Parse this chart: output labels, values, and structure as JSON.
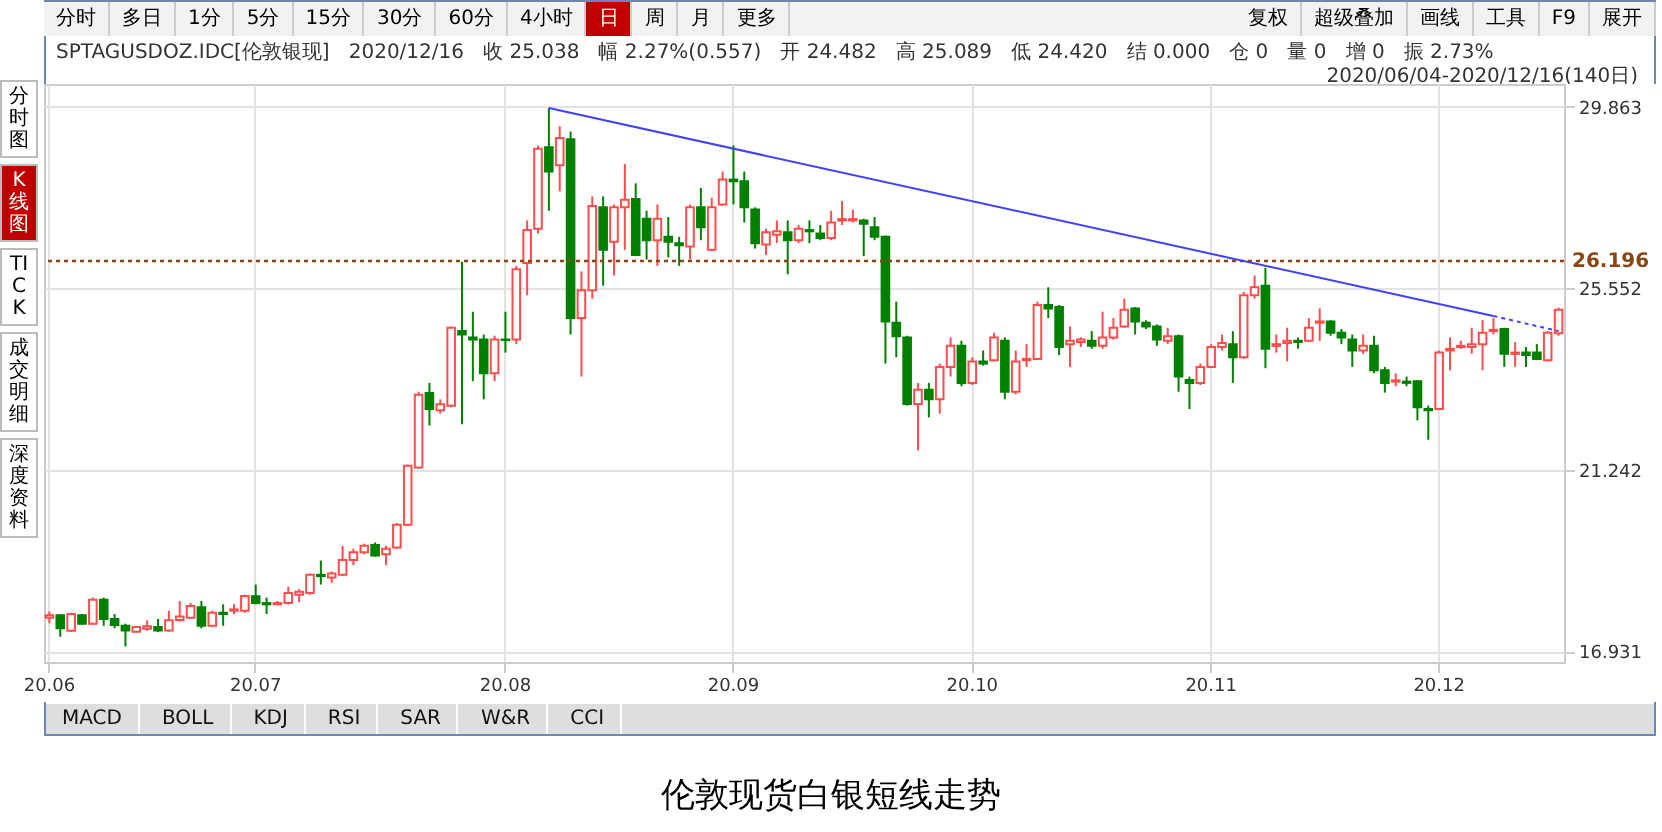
{
  "chart_data": {
    "type": "candlestick",
    "title": "伦敦现货白银短线走势",
    "subtitle": "SPTAGUSDOZ.IDC[伦敦银现]   2020/12/16   收 25.038   幅 2.27%(0.557)   开 24.482   高 25.089   低 24.420   结 0.000   仓 0   量 0   增 0   振 2.73%",
    "annotations": [
      "分时",
      "多日",
      "1分",
      "5分",
      "15分",
      "30分",
      "60分",
      "4小时",
      "日",
      "周",
      "月",
      "更多",
      "复权",
      "超级叠加",
      "画线",
      "工具",
      "F9",
      "展开",
      "分时图",
      "K线图",
      "TICK",
      "成交明细",
      "深度资料",
      "MACD",
      "BOLL",
      "KDJ",
      "RSI",
      "SAR",
      "W&R",
      "CCI",
      "2020/06/04-2020/12/16(140日)"
    ],
    "categories": [
      "20.06",
      null,
      null,
      null,
      null,
      null,
      null,
      null,
      null,
      null,
      null,
      null,
      null,
      null,
      null,
      null,
      null,
      null,
      null,
      "20.07",
      null,
      null,
      null,
      null,
      null,
      null,
      null,
      null,
      null,
      null,
      null,
      null,
      null,
      null,
      null,
      null,
      null,
      null,
      null,
      null,
      null,
      null,
      "20.08",
      null,
      null,
      null,
      null,
      null,
      null,
      null,
      null,
      null,
      null,
      null,
      null,
      null,
      null,
      null,
      null,
      null,
      null,
      null,
      null,
      "20.09",
      null,
      null,
      null,
      null,
      null,
      null,
      null,
      null,
      null,
      null,
      null,
      null,
      null,
      null,
      null,
      null,
      null,
      null,
      null,
      null,
      null,
      "20.10",
      null,
      null,
      null,
      null,
      null,
      null,
      null,
      null,
      null,
      null,
      null,
      null,
      null,
      null,
      null,
      null,
      null,
      null,
      null,
      null,
      null,
      "20.11",
      null,
      null,
      null,
      null,
      null,
      null,
      null,
      null,
      null,
      null,
      null,
      null,
      null,
      null,
      null,
      null,
      null,
      null,
      null,
      null,
      "20.12",
      null,
      null,
      null,
      null,
      null,
      null,
      null,
      null,
      null,
      null,
      null
    ],
    "ohlc": [
      [
        17.72,
        17.87,
        17.59,
        17.78
      ],
      [
        17.78,
        17.81,
        17.27,
        17.47
      ],
      [
        17.41,
        17.84,
        17.38,
        17.81
      ],
      [
        17.78,
        17.81,
        17.56,
        17.58
      ],
      [
        17.58,
        18.2,
        17.56,
        18.15
      ],
      [
        18.15,
        18.2,
        17.53,
        17.69
      ],
      [
        17.69,
        17.81,
        17.47,
        17.55
      ],
      [
        17.53,
        17.58,
        17.04,
        17.42
      ],
      [
        17.39,
        17.53,
        17.38,
        17.5
      ],
      [
        17.46,
        17.66,
        17.41,
        17.52
      ],
      [
        17.5,
        17.69,
        17.38,
        17.42
      ],
      [
        17.42,
        17.89,
        17.39,
        17.66
      ],
      [
        17.67,
        18.12,
        17.63,
        17.75
      ],
      [
        17.72,
        18.07,
        17.69,
        18.0
      ],
      [
        17.97,
        18.12,
        17.47,
        17.53
      ],
      [
        17.53,
        17.89,
        17.5,
        17.84
      ],
      [
        17.84,
        18.04,
        17.53,
        17.81
      ],
      [
        17.89,
        18.04,
        17.81,
        17.92
      ],
      [
        17.89,
        18.27,
        17.84,
        18.24
      ],
      [
        18.23,
        18.51,
        18.04,
        18.07
      ],
      [
        18.07,
        18.2,
        17.81,
        18.04
      ],
      [
        18.04,
        18.12,
        18.03,
        18.07
      ],
      [
        18.07,
        18.46,
        18.04,
        18.31
      ],
      [
        18.27,
        18.4,
        18.09,
        18.34
      ],
      [
        18.31,
        18.77,
        18.27,
        18.74
      ],
      [
        18.74,
        19.08,
        18.51,
        18.71
      ],
      [
        18.68,
        18.82,
        18.55,
        18.77
      ],
      [
        18.74,
        19.43,
        18.71,
        19.09
      ],
      [
        19.09,
        19.36,
        18.97,
        19.28
      ],
      [
        19.28,
        19.48,
        19.23,
        19.43
      ],
      [
        19.45,
        19.51,
        19.17,
        19.2
      ],
      [
        19.23,
        19.43,
        18.97,
        19.36
      ],
      [
        19.39,
        19.97,
        19.36,
        19.93
      ],
      [
        19.93,
        21.36,
        19.9,
        21.33
      ],
      [
        21.29,
        23.09,
        21.26,
        23.02
      ],
      [
        23.06,
        23.3,
        22.29,
        22.68
      ],
      [
        22.65,
        22.91,
        22.57,
        22.79
      ],
      [
        22.76,
        24.64,
        22.72,
        24.61
      ],
      [
        24.53,
        26.18,
        22.32,
        24.45
      ],
      [
        24.38,
        24.99,
        23.34,
        24.33
      ],
      [
        24.33,
        24.45,
        22.91,
        23.53
      ],
      [
        23.53,
        24.42,
        23.34,
        24.33
      ],
      [
        24.33,
        24.99,
        24.02,
        24.32
      ],
      [
        24.33,
        26.08,
        24.22,
        26.0
      ],
      [
        26.15,
        27.16,
        25.38,
        26.93
      ],
      [
        26.96,
        28.94,
        26.85,
        28.86
      ],
      [
        28.9,
        29.83,
        27.39,
        28.32
      ],
      [
        28.47,
        29.4,
        27.85,
        29.12
      ],
      [
        29.09,
        29.27,
        24.45,
        24.84
      ],
      [
        24.84,
        25.95,
        23.45,
        25.5
      ],
      [
        25.5,
        27.73,
        25.3,
        27.5
      ],
      [
        27.47,
        27.73,
        25.61,
        26.46
      ],
      [
        26.65,
        27.54,
        25.85,
        27.47
      ],
      [
        27.47,
        28.5,
        26.46,
        27.65
      ],
      [
        27.67,
        28.04,
        26.31,
        26.34
      ],
      [
        27.2,
        27.39,
        26.23,
        26.69
      ],
      [
        26.69,
        27.54,
        26.08,
        27.2
      ],
      [
        26.77,
        27.24,
        26.28,
        26.65
      ],
      [
        26.62,
        26.77,
        26.08,
        26.57
      ],
      [
        26.54,
        27.54,
        26.23,
        27.47
      ],
      [
        27.47,
        27.93,
        26.69,
        27.0
      ],
      [
        26.46,
        27.7,
        26.43,
        27.47
      ],
      [
        27.54,
        28.32,
        27.51,
        28.13
      ],
      [
        28.13,
        28.94,
        27.54,
        28.09
      ],
      [
        28.09,
        28.32,
        27.11,
        27.47
      ],
      [
        27.42,
        27.47,
        26.49,
        26.62
      ],
      [
        26.59,
        26.96,
        26.34,
        26.88
      ],
      [
        26.82,
        27.16,
        26.62,
        26.9
      ],
      [
        26.88,
        27.16,
        25.88,
        26.69
      ],
      [
        26.69,
        27.05,
        26.62,
        26.96
      ],
      [
        26.93,
        27.16,
        26.62,
        26.9
      ],
      [
        26.85,
        27.05,
        26.69,
        26.74
      ],
      [
        26.74,
        27.39,
        26.69,
        27.11
      ],
      [
        27.16,
        27.62,
        27.05,
        27.19
      ],
      [
        27.16,
        27.42,
        27.11,
        27.19
      ],
      [
        27.16,
        27.2,
        26.31,
        27.08
      ],
      [
        27.0,
        27.24,
        26.69,
        26.77
      ],
      [
        26.77,
        26.8,
        23.76,
        24.76
      ],
      [
        24.73,
        25.23,
        23.91,
        24.41
      ],
      [
        24.38,
        24.42,
        22.76,
        22.8
      ],
      [
        22.8,
        23.3,
        21.7,
        23.14
      ],
      [
        23.14,
        23.3,
        22.48,
        22.91
      ],
      [
        22.91,
        23.76,
        22.57,
        23.68
      ],
      [
        23.68,
        24.38,
        23.45,
        24.18
      ],
      [
        24.18,
        24.3,
        23.22,
        23.3
      ],
      [
        23.3,
        23.91,
        23.25,
        23.81
      ],
      [
        23.81,
        24.07,
        23.71,
        23.76
      ],
      [
        23.84,
        24.49,
        23.81,
        24.38
      ],
      [
        24.3,
        24.38,
        22.91,
        23.09
      ],
      [
        23.09,
        24.07,
        23.03,
        23.81
      ],
      [
        23.84,
        24.22,
        23.68,
        23.87
      ],
      [
        23.87,
        25.23,
        23.84,
        25.15
      ],
      [
        25.15,
        25.57,
        24.84,
        25.07
      ],
      [
        25.1,
        25.15,
        23.96,
        24.15
      ],
      [
        24.22,
        24.64,
        23.68,
        24.3
      ],
      [
        24.27,
        24.38,
        24.15,
        24.33
      ],
      [
        24.3,
        24.53,
        24.11,
        24.18
      ],
      [
        24.18,
        24.99,
        24.11,
        24.38
      ],
      [
        24.38,
        24.84,
        24.33,
        24.61
      ],
      [
        24.64,
        25.3,
        24.61,
        25.04
      ],
      [
        25.07,
        25.1,
        24.45,
        24.76
      ],
      [
        24.73,
        24.79,
        24.58,
        24.64
      ],
      [
        24.64,
        24.69,
        24.18,
        24.33
      ],
      [
        24.3,
        24.61,
        24.22,
        24.41
      ],
      [
        24.41,
        24.45,
        23.09,
        23.45
      ],
      [
        23.37,
        23.45,
        22.68,
        23.3
      ],
      [
        23.3,
        23.76,
        23.25,
        23.68
      ],
      [
        23.68,
        24.22,
        23.65,
        24.15
      ],
      [
        24.15,
        24.45,
        24.07,
        24.25
      ],
      [
        24.22,
        24.53,
        23.3,
        23.91
      ],
      [
        23.91,
        25.46,
        23.87,
        25.38
      ],
      [
        25.38,
        25.85,
        25.3,
        25.57
      ],
      [
        25.61,
        26.03,
        23.65,
        24.11
      ],
      [
        24.18,
        24.45,
        24.02,
        24.22
      ],
      [
        24.25,
        24.61,
        23.81,
        24.3
      ],
      [
        24.3,
        24.38,
        24.11,
        24.27
      ],
      [
        24.3,
        24.84,
        24.27,
        24.61
      ],
      [
        24.73,
        25.07,
        24.3,
        24.76
      ],
      [
        24.76,
        24.79,
        24.42,
        24.49
      ],
      [
        24.49,
        24.58,
        24.22,
        24.38
      ],
      [
        24.33,
        24.45,
        23.68,
        24.07
      ],
      [
        24.07,
        24.45,
        23.99,
        24.18
      ],
      [
        24.18,
        24.42,
        23.53,
        23.6
      ],
      [
        23.6,
        23.68,
        23.07,
        23.3
      ],
      [
        23.33,
        23.53,
        23.22,
        23.36
      ],
      [
        23.33,
        23.45,
        23.22,
        23.3
      ],
      [
        23.34,
        23.37,
        22.41,
        22.72
      ],
      [
        22.68,
        22.76,
        21.95,
        22.65
      ],
      [
        22.68,
        24.07,
        22.65,
        24.02
      ],
      [
        24.07,
        24.38,
        23.6,
        24.11
      ],
      [
        24.15,
        24.3,
        24.11,
        24.18
      ],
      [
        24.15,
        24.61,
        23.99,
        24.22
      ],
      [
        24.22,
        24.79,
        23.6,
        24.49
      ],
      [
        24.53,
        24.84,
        24.45,
        24.56
      ],
      [
        24.58,
        24.61,
        23.68,
        23.99
      ],
      [
        23.99,
        24.27,
        23.68,
        24.02
      ],
      [
        24.02,
        24.15,
        23.68,
        23.96
      ],
      [
        24.02,
        24.22,
        23.84,
        23.87
      ],
      [
        23.84,
        24.53,
        23.81,
        24.49
      ],
      [
        24.482,
        25.089,
        24.42,
        25.038
      ]
    ],
    "colors": [
      "#ff4d4d",
      "#008000",
      "#ff4d4d",
      "#008000",
      "#ff4d4d",
      "#008000",
      "#008000",
      "#008000",
      "#ff4d4d",
      "#ff4d4d",
      "#008000",
      "#ff4d4d",
      "#ff4d4d",
      "#ff4d4d",
      "#008000",
      "#ff4d4d",
      "#008000",
      "#ff4d4d",
      "#ff4d4d",
      "#008000",
      "#008000",
      "#ff4d4d",
      "#ff4d4d",
      "#ff4d4d",
      "#ff4d4d",
      "#008000",
      "#ff4d4d",
      "#ff4d4d",
      "#ff4d4d",
      "#ff4d4d",
      "#008000",
      "#ff4d4d",
      "#ff4d4d",
      "#ff4d4d",
      "#ff4d4d",
      "#008000",
      "#ff4d4d",
      "#ff4d4d",
      "#008000",
      "#008000",
      "#008000",
      "#ff4d4d",
      "#008000",
      "#ff4d4d",
      "#ff4d4d",
      "#ff4d4d",
      "#008000",
      "#ff4d4d",
      "#008000",
      "#ff4d4d",
      "#ff4d4d",
      "#008000",
      "#ff4d4d",
      "#ff4d4d",
      "#008000",
      "#008000",
      "#ff4d4d",
      "#008000",
      "#008000",
      "#ff4d4d",
      "#008000",
      "#ff4d4d",
      "#ff4d4d",
      "#008000",
      "#008000",
      "#008000",
      "#ff4d4d",
      "#ff4d4d",
      "#008000",
      "#ff4d4d",
      "#008000",
      "#008000",
      "#ff4d4d",
      "#ff4d4d",
      "#ff4d4d",
      "#008000",
      "#008000",
      "#008000",
      "#008000",
      "#008000",
      "#ff4d4d",
      "#008000",
      "#ff4d4d",
      "#ff4d4d",
      "#008000",
      "#ff4d4d",
      "#008000",
      "#ff4d4d",
      "#008000",
      "#ff4d4d",
      "#ff4d4d",
      "#ff4d4d",
      "#008000",
      "#008000",
      "#ff4d4d",
      "#ff4d4d",
      "#008000",
      "#ff4d4d",
      "#ff4d4d",
      "#ff4d4d",
      "#008000",
      "#008000",
      "#008000",
      "#ff4d4d",
      "#008000",
      "#008000",
      "#ff4d4d",
      "#ff4d4d",
      "#ff4d4d",
      "#008000",
      "#ff4d4d",
      "#ff4d4d",
      "#008000",
      "#ff4d4d",
      "#ff4d4d",
      "#008000",
      "#ff4d4d",
      "#ff4d4d",
      "#008000",
      "#008000",
      "#008000",
      "#ff4d4d",
      "#008000",
      "#008000",
      "#ff4d4d",
      "#008000",
      "#008000",
      "#008000",
      "#ff4d4d",
      "#ff4d4d",
      "#ff4d4d",
      "#ff4d4d",
      "#ff4d4d",
      "#ff4d4d",
      "#008000",
      "#ff4d4d",
      "#008000",
      "#008000",
      "#ff4d4d",
      "#ff4d4d"
    ],
    "series": [
      {
        "type": "line",
        "color": "#4040ff",
        "values": [
          null,
          null,
          null,
          null,
          null,
          null,
          null,
          null,
          null,
          null,
          null,
          null,
          null,
          null,
          null,
          null,
          null,
          null,
          null,
          null,
          null,
          null,
          null,
          null,
          null,
          null,
          null,
          null,
          null,
          null,
          null,
          null,
          null,
          null,
          null,
          null,
          null,
          null,
          null,
          null,
          null,
          null,
          null,
          null,
          null,
          null,
          29.83,
          null,
          null,
          null,
          null,
          null,
          null,
          null,
          null,
          null,
          null,
          null,
          null,
          null,
          null,
          null,
          null,
          null,
          null,
          null,
          null,
          null,
          null,
          null,
          null,
          null,
          null,
          null,
          null,
          null,
          null,
          null,
          null,
          null,
          null,
          null,
          null,
          null,
          null,
          null,
          null,
          null,
          null,
          null,
          null,
          null,
          null,
          null,
          null,
          null,
          null,
          null,
          null,
          null,
          null,
          null,
          null,
          null,
          null,
          null,
          null,
          null,
          null,
          null,
          null,
          null,
          null,
          null,
          null,
          null,
          null,
          null,
          null,
          null,
          null,
          null,
          null,
          null,
          null,
          null,
          null,
          null,
          null,
          null,
          null,
          null,
          null,
          24.89,
          null,
          null,
          null,
          null,
          null,
          null
        ]
      },
      {
        "type": "line",
        "color": "#4040ff",
        "line_style": "dotted",
        "values": [
          null,
          null,
          null,
          null,
          null,
          null,
          null,
          null,
          null,
          null,
          null,
          null,
          null,
          null,
          null,
          null,
          null,
          null,
          null,
          null,
          null,
          null,
          null,
          null,
          null,
          null,
          null,
          null,
          null,
          null,
          null,
          null,
          null,
          null,
          null,
          null,
          null,
          null,
          null,
          null,
          null,
          null,
          null,
          null,
          null,
          null,
          null,
          null,
          null,
          null,
          null,
          null,
          null,
          null,
          null,
          null,
          null,
          null,
          null,
          null,
          null,
          null,
          null,
          null,
          null,
          null,
          null,
          null,
          null,
          null,
          null,
          null,
          null,
          null,
          null,
          null,
          null,
          null,
          null,
          null,
          null,
          null,
          null,
          null,
          null,
          null,
          null,
          null,
          null,
          null,
          null,
          null,
          null,
          null,
          null,
          null,
          null,
          null,
          null,
          null,
          null,
          null,
          null,
          null,
          null,
          null,
          null,
          null,
          null,
          null,
          null,
          null,
          null,
          null,
          null,
          null,
          null,
          null,
          null,
          null,
          null,
          null,
          null,
          null,
          null,
          null,
          null,
          null,
          null,
          null,
          null,
          null,
          null,
          24.89,
          null,
          null,
          null,
          null,
          null,
          24.53
        ]
      }
    ],
    "ylim": [
      16.67,
      30.4
    ],
    "yticks": [
      29.863,
      25.552,
      21.242,
      16.931
    ],
    "ref_lines": [
      {
        "axis": "y",
        "value": 26.196,
        "label": "26.196",
        "color": "#8b4513",
        "line_style": "dotted"
      }
    ],
    "grid": true
  }
}
